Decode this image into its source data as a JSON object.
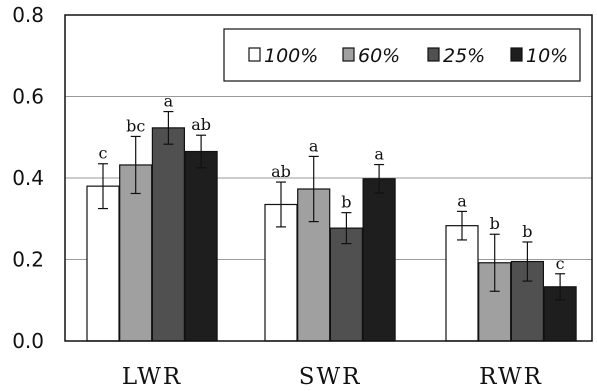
{
  "chart_data": {
    "type": "bar",
    "title": "",
    "xlabel": "",
    "ylabel": "",
    "ylim": [
      0,
      0.8
    ],
    "yticks": [
      "0.0",
      "0.2",
      "0.4",
      "0.6",
      "0.8"
    ],
    "grid": true,
    "legend_position": "top-right",
    "categories": [
      "LWR",
      "SWR",
      "RWR"
    ],
    "series": [
      {
        "name": "100%",
        "color": "#ffffff",
        "values": [
          0.38,
          0.335,
          0.283
        ],
        "errors": [
          0.055,
          0.055,
          0.035
        ],
        "labels": [
          "c",
          "ab",
          "a"
        ]
      },
      {
        "name": "60%",
        "color": "#a0a0a0",
        "values": [
          0.432,
          0.373,
          0.192
        ],
        "errors": [
          0.07,
          0.08,
          0.07
        ],
        "labels": [
          "bc",
          "a",
          "b"
        ]
      },
      {
        "name": "25%",
        "color": "#505050",
        "values": [
          0.523,
          0.277,
          0.195
        ],
        "errors": [
          0.04,
          0.038,
          0.048
        ],
        "labels": [
          "a",
          "b",
          "b"
        ]
      },
      {
        "name": "10%",
        "color": "#1e1e1e",
        "values": [
          0.465,
          0.398,
          0.133
        ],
        "errors": [
          0.04,
          0.035,
          0.032
        ],
        "labels": [
          "ab",
          "a",
          "c"
        ]
      }
    ]
  }
}
